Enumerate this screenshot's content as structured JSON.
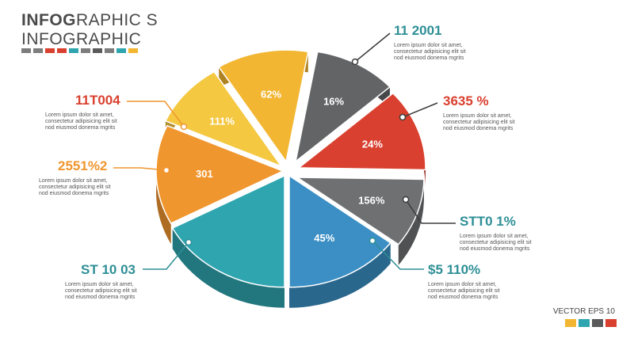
{
  "header": {
    "title_bold": "INFOG",
    "title_rest": "RAPHIC S",
    "subtitle": "INFOGRAPHIC",
    "swatches": [
      "#7d7d7d",
      "#7d7d7d",
      "#d9402f",
      "#d9402f",
      "#2fa5b0",
      "#7d7d7d",
      "#5a5a5a",
      "#7d7d7d",
      "#2fa5b0",
      "#f2b632"
    ]
  },
  "chart_data": {
    "type": "pie",
    "title": "",
    "slices": [
      {
        "label": "16%",
        "value": 16,
        "color": "#626466"
      },
      {
        "label": "24%",
        "value": 24,
        "color": "#d9402f"
      },
      {
        "label": "156%",
        "value": 156,
        "color": "#6e7072"
      },
      {
        "label": "45%",
        "value": 45,
        "color": "#3b8fc4"
      },
      {
        "label": "",
        "value": 0,
        "color": "#2fa5b0"
      },
      {
        "label": "301",
        "value": 301,
        "color": "#f0962f"
      },
      {
        "label": "111%",
        "value": 111,
        "color": "#f5c842"
      },
      {
        "label": "62%",
        "value": 62,
        "color": "#f2b632"
      }
    ]
  },
  "callouts": [
    {
      "big": "11 2001",
      "desc": "Lorem ipsum dolor sit amet,\nconsectetur adipisicing elit sit\nnod eiusmod donema mgrits",
      "color": "#2e8f96"
    },
    {
      "big": "3635 %",
      "desc": "Lorem ipsum dolor sit amet,\nconsectetur adipisicing elit sit\nnod eiusmod donema mgrits",
      "color": "#d9402f"
    },
    {
      "big": "STT0 1%",
      "desc": "Lorem ipsum dolor sit amet,\nconsectetur adipisicing elit sit\nnod eiusmod donema mgrits",
      "color": "#2e8f96"
    },
    {
      "big": "$5 110%",
      "desc": "Lorem ipsum dolor sit amet,\nconsectetur adipisicing elit sit\nnod eiusmod donema mgrits",
      "color": "#2e8f96"
    },
    {
      "big": "ST 10 03",
      "desc": "Lorem ipsum dolor sit amet,\nconsectetur adipisicing elit sit\nnod eiusmod donema mgrits",
      "color": "#2e8f96"
    },
    {
      "big": "2551%2",
      "desc": "Lorem ipsum dolor sit amet,\nconsectetur adipisicing elit sit\nnod eiusmod donema mgrits",
      "color": "#f0962f"
    },
    {
      "big": "11T004",
      "desc": "Lorem ipsum dolor sit amet,\nconsectetur adipisicing elit sit\nnod eiusmod donema mgrits",
      "color": "#d9402f"
    }
  ],
  "footer": {
    "label": "VECTOR EPS 10",
    "swatches": [
      "#f2b632",
      "#2fa5b0",
      "#5a5a5a",
      "#d9402f"
    ]
  }
}
